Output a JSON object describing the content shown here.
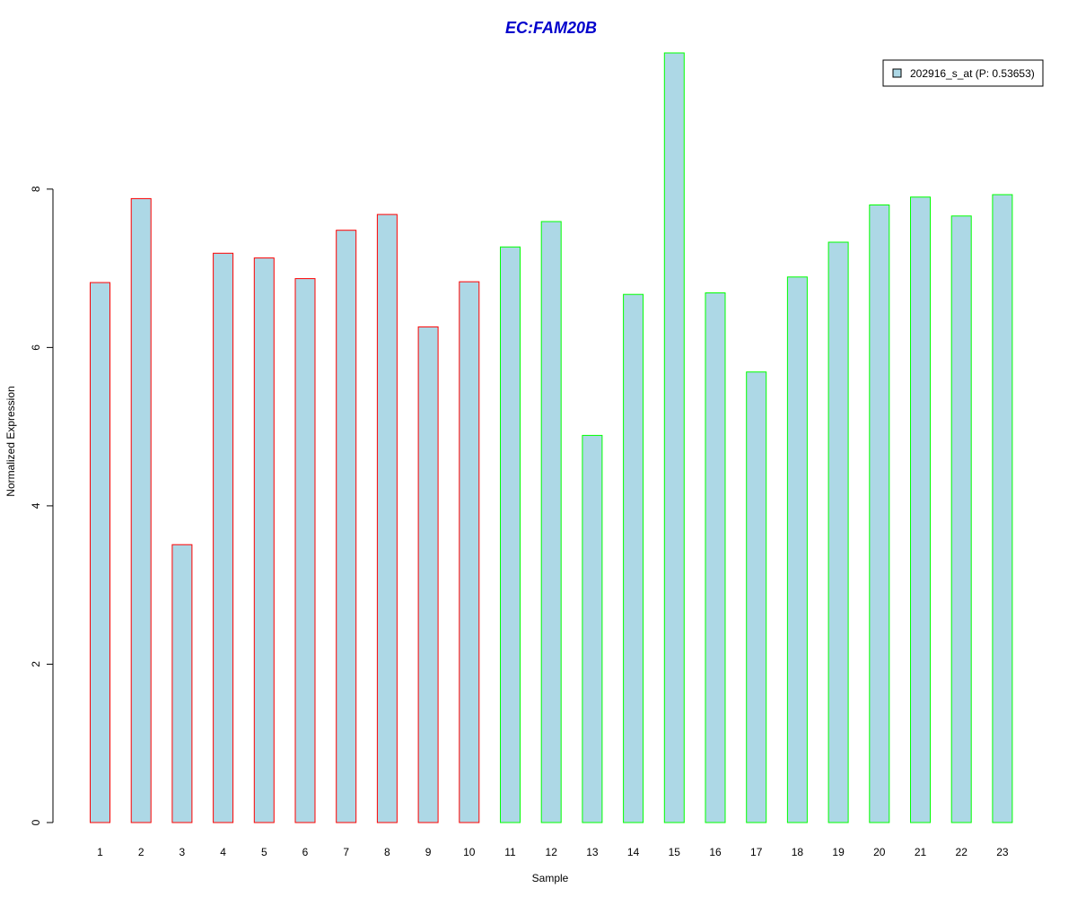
{
  "chart_data": {
    "type": "bar",
    "title": "EC:FAM20B",
    "xlabel": "Sample",
    "ylabel": "Normalized Expression",
    "categories": [
      "1",
      "2",
      "3",
      "4",
      "5",
      "6",
      "7",
      "8",
      "9",
      "10",
      "11",
      "12",
      "13",
      "14",
      "15",
      "16",
      "17",
      "18",
      "19",
      "20",
      "21",
      "22",
      "23"
    ],
    "series": [
      {
        "name": "202916_s_at (P: 0.53653)",
        "values": [
          6.82,
          7.88,
          3.51,
          7.19,
          7.13,
          6.87,
          7.48,
          7.68,
          6.26,
          6.83,
          7.27,
          7.59,
          4.89,
          6.67,
          9.72,
          6.69,
          5.69,
          6.89,
          7.33,
          7.8,
          7.9,
          7.66,
          7.93
        ]
      }
    ],
    "ylim": [
      0,
      9.72
    ],
    "yticks": [
      0,
      2,
      4,
      6,
      8
    ],
    "legend_position": "top-right",
    "grid": false,
    "colors": {
      "bar_fill": "#add8e6",
      "group1_border": "#ff0000",
      "group2_border": "#00ff00",
      "title": "#0000cc",
      "legend_swatch": "#add8e6"
    },
    "bar_group": [
      1,
      1,
      1,
      1,
      1,
      1,
      1,
      1,
      1,
      1,
      2,
      2,
      2,
      2,
      2,
      2,
      2,
      2,
      2,
      2,
      2,
      2,
      2
    ]
  }
}
